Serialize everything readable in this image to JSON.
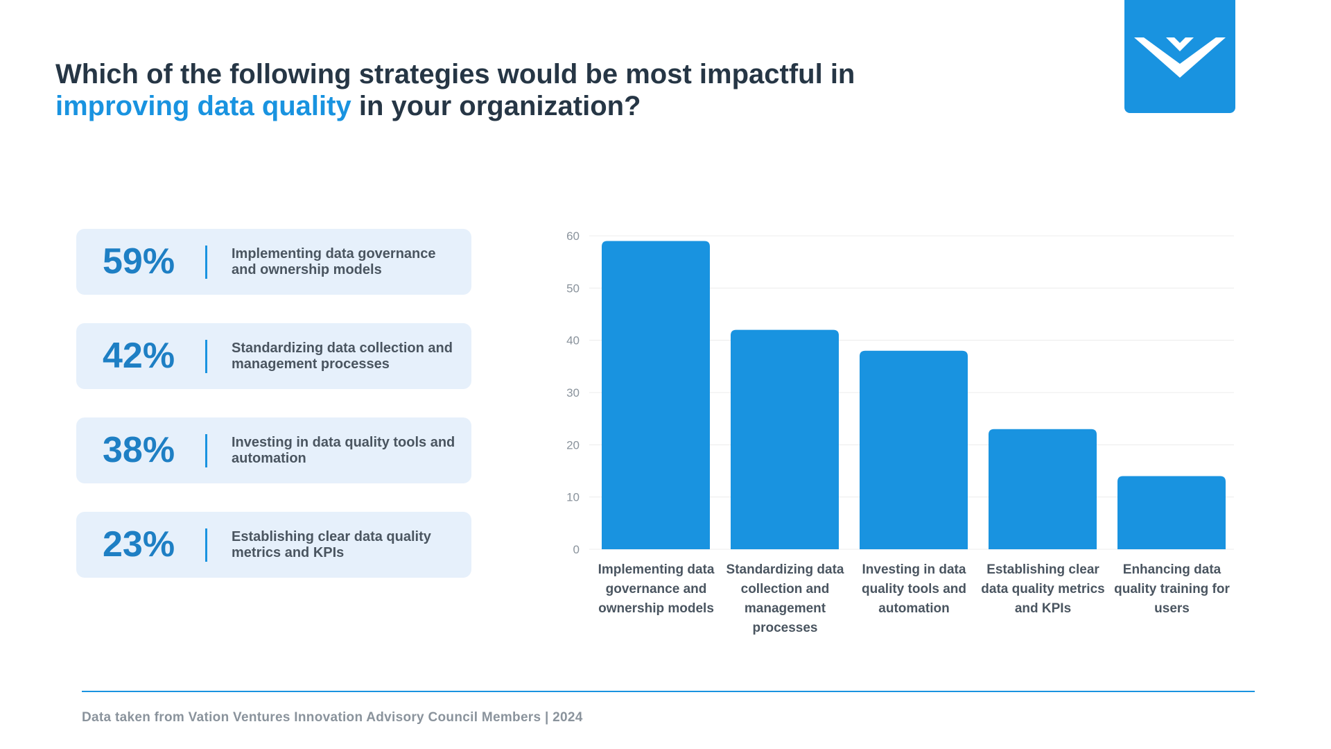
{
  "header": {
    "title_part1": "Which of the following strategies would be most impactful in ",
    "title_highlight": "improving data quality",
    "title_part2": " in your organization?"
  },
  "colors": {
    "accent": "#1993e0",
    "title": "#263645",
    "card_bg": "#e6f0fb",
    "bar": "#1993e0"
  },
  "stats": [
    {
      "pct": "59%",
      "text": "Implementing data governance and ownership models"
    },
    {
      "pct": "42%",
      "text": "Standardizing data collection and management processes"
    },
    {
      "pct": "38%",
      "text": "Investing in data quality tools and automation"
    },
    {
      "pct": "23%",
      "text": "Establishing clear data quality metrics and KPIs"
    }
  ],
  "chart_data": {
    "type": "bar",
    "categories": [
      "Implementing data governance and ownership models",
      "Standardizing data collection and management processes",
      "Investing in data quality tools and automation",
      "Establishing clear data quality metrics and KPIs",
      "Enhancing data quality training for users"
    ],
    "values": [
      59,
      42,
      38,
      23,
      14
    ],
    "title": "",
    "xlabel": "",
    "ylabel": "",
    "ylim": [
      0,
      60
    ],
    "yticks": [
      "0",
      "10",
      "20",
      "30",
      "40",
      "50",
      "60"
    ],
    "grid": true,
    "legend": "none"
  },
  "footer": {
    "source": "Data taken from Vation Ventures Innovation Advisory Council Members | 2024"
  },
  "logo": {
    "icon": "vation-chevron-logo-icon"
  }
}
